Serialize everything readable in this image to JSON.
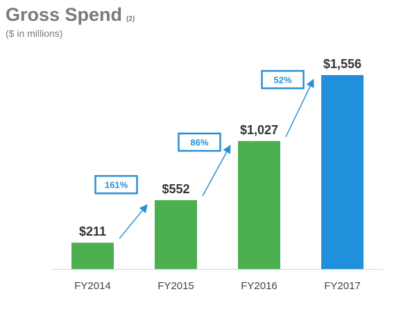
{
  "chart_data": {
    "type": "bar",
    "title": "Gross Spend",
    "title_footnote": "(2)",
    "subtitle": "($ in millions)",
    "categories": [
      "FY2014",
      "FY2015",
      "FY2016",
      "FY2017"
    ],
    "values": [
      211,
      552,
      1027,
      1556
    ],
    "value_labels": [
      "$211",
      "$552",
      "$1,027",
      "$1,556"
    ],
    "bar_colors": [
      "#4cb050",
      "#4cb050",
      "#4cb050",
      "#2190dc"
    ],
    "growth_labels": [
      "161%",
      "86%",
      "52%"
    ],
    "accent_color": "#2a8fd4",
    "ylim": [
      0,
      1556
    ],
    "grid": false,
    "xlabel": "",
    "ylabel": ""
  }
}
